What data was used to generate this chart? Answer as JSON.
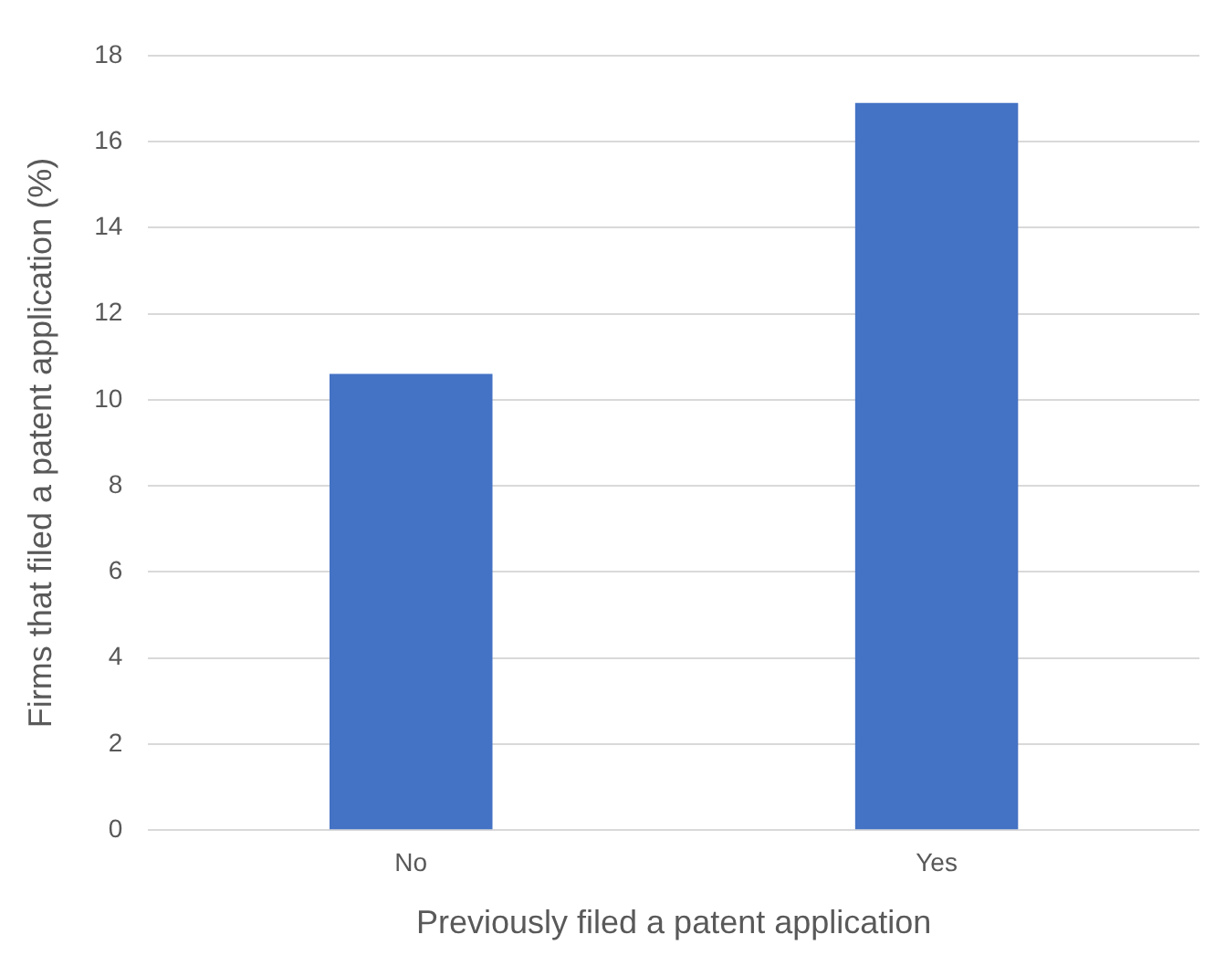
{
  "chart_data": {
    "type": "bar",
    "xlabel": "Previously filed a patent application",
    "ylabel": "Firms that filed a patent application (%)",
    "categories": [
      "No",
      "Yes"
    ],
    "series": [
      {
        "color": "#4472c4",
        "values": [
          10.6,
          16.9
        ]
      }
    ],
    "ylim": [
      0,
      18
    ],
    "yticks": [
      0,
      2,
      4,
      6,
      8,
      10,
      12,
      14,
      16,
      18
    ],
    "grid": "y",
    "legend": false
  }
}
